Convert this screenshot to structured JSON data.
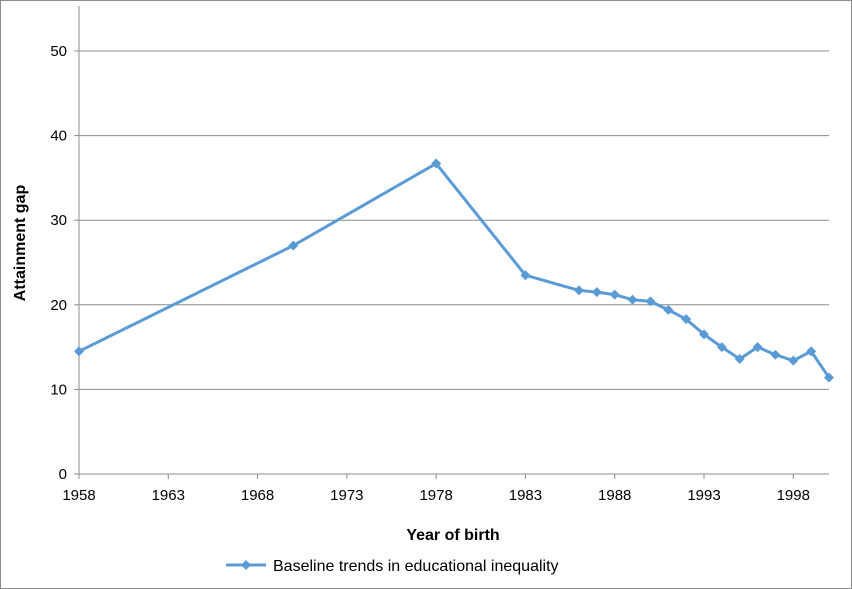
{
  "chart_data": {
    "type": "line",
    "title": "",
    "xlabel": "Year of birth",
    "ylabel": "Attainment gap",
    "xlim": [
      1958,
      2000
    ],
    "ylim": [
      0,
      50
    ],
    "x_ticks": [
      "1958",
      "1963",
      "1968",
      "1973",
      "1978",
      "1983",
      "1988",
      "1993",
      "1998"
    ],
    "y_ticks": [
      "0",
      "10",
      "20",
      "30",
      "40",
      "50"
    ],
    "grid": true,
    "legend_position": "bottom",
    "series": [
      {
        "name": "Baseline trends in educational inequality",
        "color": "#5B9BD5",
        "marker": "diamond",
        "x": [
          1958,
          1970,
          1978,
          1983,
          1986,
          1987,
          1988,
          1989,
          1990,
          1991,
          1992,
          1993,
          1994,
          1995,
          1996,
          1997,
          1998,
          1999,
          2000
        ],
        "y": [
          14.5,
          27.0,
          36.7,
          23.5,
          21.7,
          21.5,
          21.2,
          20.6,
          20.4,
          19.4,
          18.3,
          16.5,
          15.0,
          13.6,
          15.0,
          14.1,
          13.4,
          14.5,
          11.4
        ]
      }
    ]
  }
}
